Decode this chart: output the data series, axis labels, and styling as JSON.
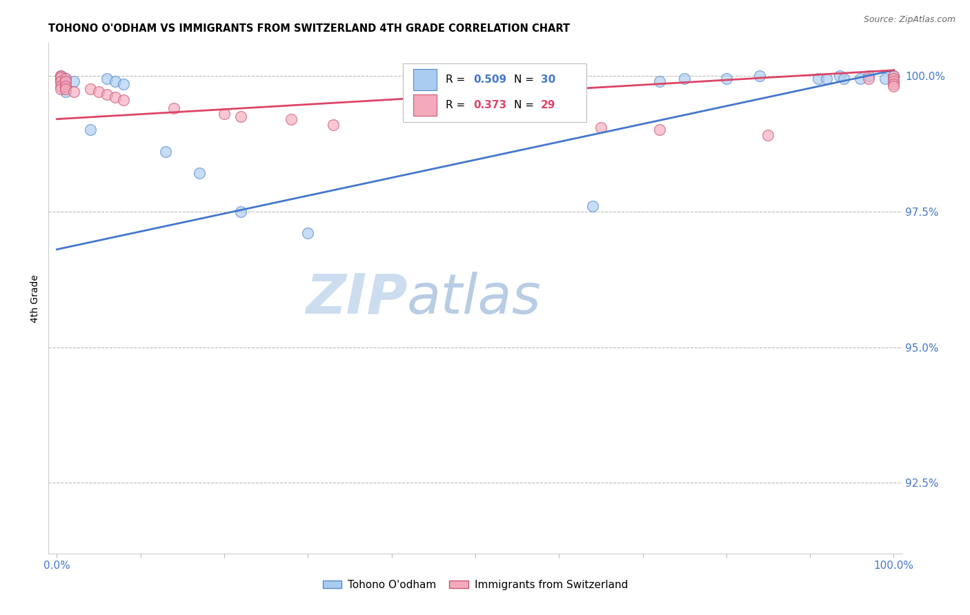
{
  "title": "TOHONO O'ODHAM VS IMMIGRANTS FROM SWITZERLAND 4TH GRADE CORRELATION CHART",
  "source": "Source: ZipAtlas.com",
  "ylabel": "4th Grade",
  "y_tick_labels": [
    "100.0%",
    "97.5%",
    "95.0%",
    "92.5%"
  ],
  "y_tick_values": [
    1.0,
    0.975,
    0.95,
    0.925
  ],
  "x_tick_values": [
    0.0,
    0.1,
    0.2,
    0.3,
    0.4,
    0.5,
    0.6,
    0.7,
    0.8,
    0.9,
    1.0
  ],
  "xlim": [
    -0.01,
    1.01
  ],
  "ylim": [
    0.912,
    1.006
  ],
  "blue_scatter_x": [
    0.005,
    0.005,
    0.005,
    0.01,
    0.01,
    0.01,
    0.01,
    0.01,
    0.02,
    0.04,
    0.06,
    0.07,
    0.08,
    0.13,
    0.17,
    0.22,
    0.3,
    0.64,
    0.72,
    0.75,
    0.8,
    0.84,
    0.91,
    0.92,
    0.935,
    0.94,
    0.96,
    0.97,
    0.99,
    1.0
  ],
  "blue_scatter_y": [
    1.0,
    0.9995,
    0.999,
    0.9995,
    0.999,
    0.9985,
    0.998,
    0.997,
    0.999,
    0.99,
    0.9995,
    0.999,
    0.9985,
    0.986,
    0.982,
    0.975,
    0.971,
    0.976,
    0.999,
    0.9995,
    0.9995,
    1.0,
    0.9995,
    0.9995,
    1.0,
    0.9995,
    0.9995,
    1.0,
    0.9995,
    1.0
  ],
  "pink_scatter_x": [
    0.005,
    0.005,
    0.005,
    0.005,
    0.005,
    0.01,
    0.01,
    0.01,
    0.01,
    0.02,
    0.04,
    0.05,
    0.06,
    0.07,
    0.08,
    0.14,
    0.2,
    0.22,
    0.28,
    0.33,
    0.65,
    0.72,
    0.85,
    0.97,
    1.0,
    1.0,
    1.0,
    1.0,
    1.0
  ],
  "pink_scatter_y": [
    1.0,
    0.9997,
    0.999,
    0.998,
    0.9975,
    0.9995,
    0.999,
    0.998,
    0.9975,
    0.997,
    0.9975,
    0.997,
    0.9965,
    0.996,
    0.9955,
    0.994,
    0.993,
    0.9925,
    0.992,
    0.991,
    0.9905,
    0.99,
    0.989,
    0.9995,
    1.0,
    0.9995,
    0.999,
    0.9985,
    0.998
  ],
  "blue_line_y_start": 0.968,
  "blue_line_y_end": 1.001,
  "pink_line_y_start": 0.992,
  "pink_line_y_end": 1.001,
  "blue_color": "#aaccf0",
  "pink_color": "#f4aabb",
  "blue_edge_color": "#5588cc",
  "pink_edge_color": "#cc5577",
  "blue_line_color": "#4477cc",
  "pink_line_color": "#dd4466",
  "watermark_zip_color": "#c8d8f0",
  "watermark_atlas_color": "#c0d0e8",
  "legend_blue_label": "Tohono O'odham",
  "legend_pink_label": "Immigrants from Switzerland",
  "axis_label_color": "#4477cc",
  "grid_color": "#bbbbbb",
  "title_fontsize": 10.5,
  "scatter_size": 130,
  "scatter_alpha": 0.65
}
